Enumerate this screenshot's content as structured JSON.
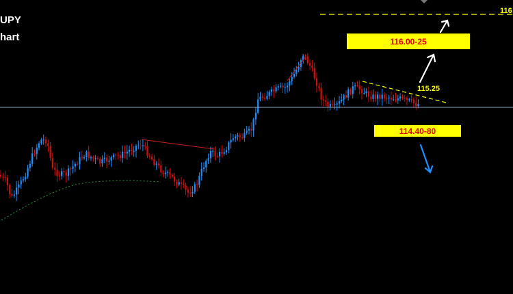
{
  "header": {
    "title_line1": "UPY",
    "title_line2": "hart"
  },
  "annotations": {
    "upper_target": "116.00-25",
    "lower_target": "114.40-80",
    "resistance_label": "115.25",
    "top_level_label": "116"
  },
  "colors": {
    "background": "#000000",
    "bull_candle": "#1e90ff",
    "bear_candle": "#d01010",
    "box_fill": "#ffff00",
    "box_text": "#e00000",
    "trend_dash": "#ffff00",
    "horizontal_line": "#8fa8c8",
    "up_arrow": "#ffffff",
    "down_arrow": "#1e90ff",
    "red_trendline": "#cc2222",
    "green_dotted": "#2a9d3a"
  },
  "chart_data": {
    "type": "candlestick",
    "instrument": "JPY pair",
    "ylim": [
      113.3,
      116.35
    ],
    "current_level": 115.0,
    "levels": {
      "top_dashed": 116.2,
      "upper_target_range": [
        116.0,
        116.25
      ],
      "resistance": 115.25,
      "lower_target_range": [
        114.4,
        114.8
      ]
    },
    "grid": false,
    "legend": "none"
  }
}
